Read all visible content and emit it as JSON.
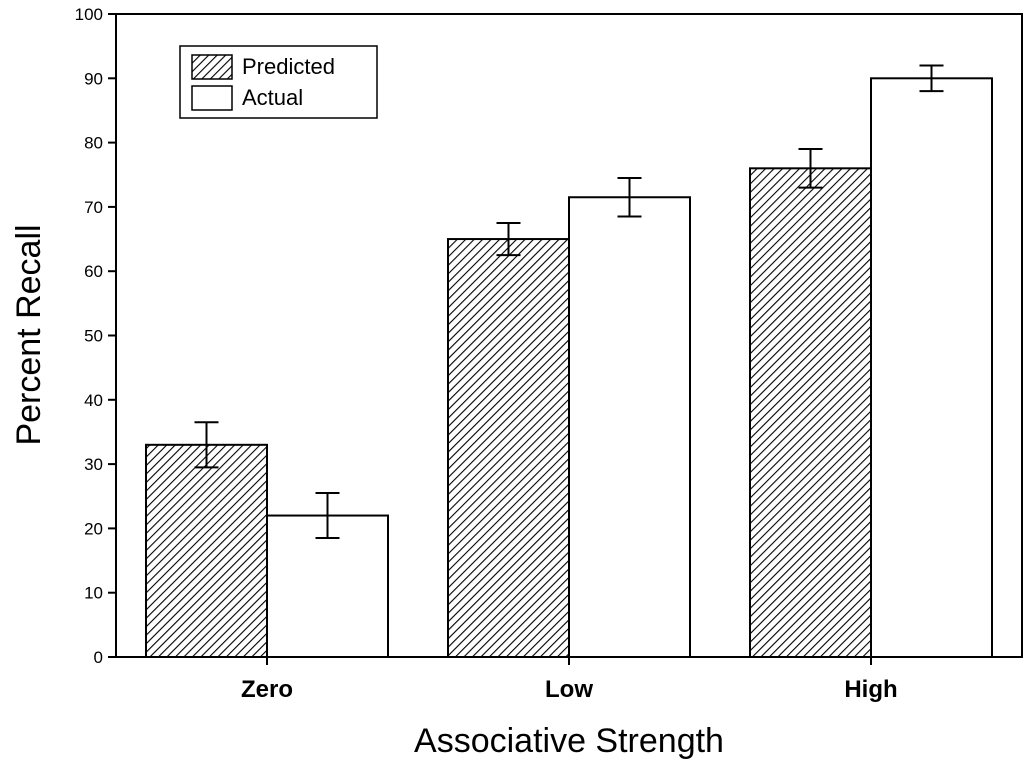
{
  "chart_data": {
    "type": "bar",
    "title": "",
    "xlabel": "Associative Strength",
    "ylabel": "Percent Recall",
    "categories": [
      "Zero",
      "Low",
      "High"
    ],
    "ylim": [
      0,
      100
    ],
    "yticks": [
      0,
      10,
      20,
      30,
      40,
      50,
      60,
      70,
      80,
      90,
      100
    ],
    "grid": false,
    "legend": {
      "placement": "top-left"
    },
    "series": [
      {
        "name": "Predicted",
        "pattern": "diagonal-hatch",
        "values": [
          33,
          65,
          76
        ],
        "error": [
          3.5,
          2.5,
          3
        ]
      },
      {
        "name": "Actual",
        "pattern": "solid-white",
        "values": [
          22,
          71.5,
          90
        ],
        "error": [
          3.5,
          3,
          2
        ]
      }
    ]
  }
}
